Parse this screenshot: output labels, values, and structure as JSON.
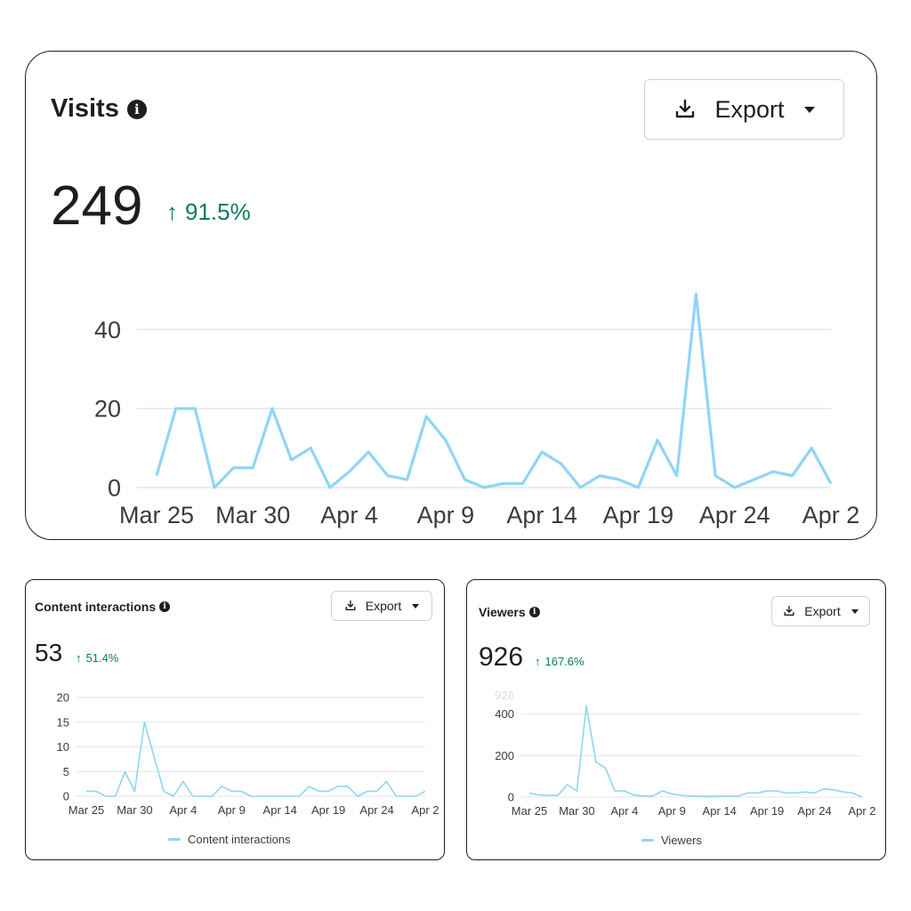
{
  "colors": {
    "line": "#8fd5f5",
    "grid": "#e4e6eb",
    "up": "#0b7b5e"
  },
  "visits": {
    "title": "Visits",
    "export_label": "Export",
    "total": "249",
    "delta": "91.5%",
    "chart_data": {
      "type": "line",
      "x": [
        "Mar 25",
        "Mar 26",
        "Mar 27",
        "Mar 28",
        "Mar 29",
        "Mar 30",
        "Mar 31",
        "Apr 1",
        "Apr 2",
        "Apr 3",
        "Apr 4",
        "Apr 5",
        "Apr 6",
        "Apr 7",
        "Apr 8",
        "Apr 9",
        "Apr 10",
        "Apr 11",
        "Apr 12",
        "Apr 13",
        "Apr 14",
        "Apr 15",
        "Apr 16",
        "Apr 17",
        "Apr 18",
        "Apr 19",
        "Apr 20",
        "Apr 21",
        "Apr 22",
        "Apr 23",
        "Apr 24",
        "Apr 25",
        "Apr 26",
        "Apr 27",
        "Apr 28",
        "Apr 29"
      ],
      "series": [
        {
          "values": [
            3,
            20,
            20,
            0,
            5,
            5,
            20,
            7,
            10,
            0,
            4,
            9,
            3,
            2,
            18,
            12,
            2,
            0,
            1,
            1,
            9,
            6,
            0,
            3,
            2,
            0,
            12,
            3,
            49,
            3,
            0,
            2,
            4,
            3,
            10,
            1
          ]
        }
      ],
      "xticks": [
        "Mar 25",
        "Mar 30",
        "Apr 4",
        "Apr 9",
        "Apr 14",
        "Apr 19",
        "Apr 24",
        "Apr 2"
      ],
      "yticks": [
        "0",
        "20",
        "40"
      ],
      "ylim": [
        0,
        50
      ]
    }
  },
  "content_interactions": {
    "title": "Content interactions",
    "export_label": "Export",
    "total": "53",
    "delta": "51.4%",
    "legend": "Content interactions",
    "chart_data": {
      "type": "line",
      "x": [
        "Mar 25",
        "Mar 26",
        "Mar 27",
        "Mar 28",
        "Mar 29",
        "Mar 30",
        "Mar 31",
        "Apr 1",
        "Apr 2",
        "Apr 3",
        "Apr 4",
        "Apr 5",
        "Apr 6",
        "Apr 7",
        "Apr 8",
        "Apr 9",
        "Apr 10",
        "Apr 11",
        "Apr 12",
        "Apr 13",
        "Apr 14",
        "Apr 15",
        "Apr 16",
        "Apr 17",
        "Apr 18",
        "Apr 19",
        "Apr 20",
        "Apr 21",
        "Apr 22",
        "Apr 23",
        "Apr 24",
        "Apr 25",
        "Apr 26",
        "Apr 27",
        "Apr 28",
        "Apr 29"
      ],
      "series": [
        {
          "name": "Content interactions",
          "values": [
            1,
            1,
            0,
            0,
            5,
            1,
            15,
            8,
            1,
            0,
            3,
            0,
            0,
            0,
            2,
            1,
            1,
            0,
            0,
            0,
            0,
            0,
            0,
            2,
            1,
            1,
            2,
            2,
            0,
            1,
            1,
            3,
            0,
            0,
            0,
            1
          ]
        }
      ],
      "xticks": [
        "Mar 25",
        "Mar 30",
        "Apr 4",
        "Apr 9",
        "Apr 14",
        "Apr 19",
        "Apr 24",
        "Apr 2"
      ],
      "yticks": [
        "0",
        "5",
        "10",
        "15",
        "20"
      ],
      "ylim": [
        0,
        20
      ]
    }
  },
  "viewers": {
    "title": "Viewers",
    "export_label": "Export",
    "total": "926",
    "delta": "167.6%",
    "legend": "Viewers",
    "chart_data": {
      "type": "line",
      "x": [
        "Mar 25",
        "Mar 26",
        "Mar 27",
        "Mar 28",
        "Mar 29",
        "Mar 30",
        "Mar 31",
        "Apr 1",
        "Apr 2",
        "Apr 3",
        "Apr 4",
        "Apr 5",
        "Apr 6",
        "Apr 7",
        "Apr 8",
        "Apr 9",
        "Apr 10",
        "Apr 11",
        "Apr 12",
        "Apr 13",
        "Apr 14",
        "Apr 15",
        "Apr 16",
        "Apr 17",
        "Apr 18",
        "Apr 19",
        "Apr 20",
        "Apr 21",
        "Apr 22",
        "Apr 23",
        "Apr 24",
        "Apr 25",
        "Apr 26",
        "Apr 27",
        "Apr 28",
        "Apr 29"
      ],
      "series": [
        {
          "name": "Viewers",
          "values": [
            20,
            10,
            8,
            8,
            60,
            30,
            440,
            170,
            140,
            30,
            30,
            10,
            5,
            5,
            30,
            15,
            8,
            5,
            5,
            3,
            5,
            5,
            5,
            20,
            20,
            30,
            30,
            20,
            20,
            25,
            20,
            40,
            35,
            25,
            20,
            0
          ]
        }
      ],
      "xticks": [
        "Mar 25",
        "Mar 30",
        "Apr 4",
        "Apr 9",
        "Apr 14",
        "Apr 19",
        "Apr 24",
        "Apr 2"
      ],
      "yticks": [
        "0",
        "200",
        "400"
      ],
      "ymax_label": "926",
      "ylim": [
        0,
        480
      ]
    }
  }
}
